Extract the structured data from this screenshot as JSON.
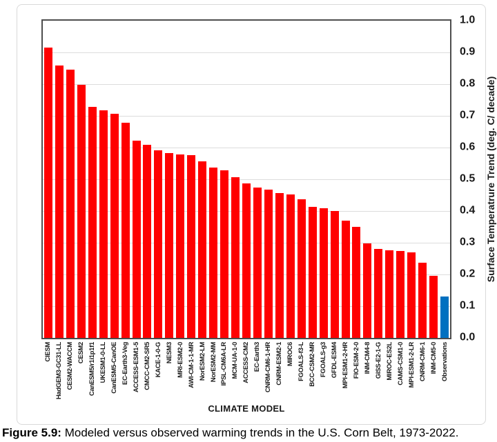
{
  "chart_data": {
    "type": "bar",
    "title": "",
    "xlabel": "CLIMATE MODEL",
    "ylabel": "Surface Temperatrure Trend (deg. C/ decade)",
    "ylim": [
      0.0,
      1.0
    ],
    "ytick_step": 0.1,
    "ytick_labels": [
      "1.0",
      "0.9",
      "0.8",
      "0.7",
      "0.6",
      "0.5",
      "0.4",
      "0.3",
      "0.2",
      "0.1",
      "0.0"
    ],
    "grid": "horizontal",
    "legend": "none",
    "categories": [
      "CIESM",
      "HadGEM3-GC31-LL",
      "CESM2-WACCM",
      "CESM2",
      "CanESM5/r1i1p1f1",
      "UKESM1-0-LL",
      "CanESM5-CanOE",
      "EC-Earth3-Veg",
      "ACCESS-ESM1-5",
      "CMCC-CM2-SR5",
      "KACE-1-0-G",
      "NESM3",
      "MRI-ESM2-0",
      "AWI-CM-1-1-MR",
      "NorESM2-LM",
      "NorESM2-MM",
      "IPSL-CM6A-LR",
      "MCM-UA-1-0",
      "ACCESS-CM2",
      "EC-Earth3",
      "CNRM-CM6-1-HR",
      "CNRM-ESM2-1",
      "MIROC6",
      "FGOALS-f3-L",
      "BCC-CSM2-MR",
      "FGOALS-g3",
      "GFDL-ESM4",
      "MPI-ESM1-2-HR",
      "FIO-ESM-2-0",
      "INM-CM4-8",
      "GISS-E2-1-G",
      "MIROC-ES2L",
      "CAMS-CSM1-0",
      "MPI-ESM1-2-LR",
      "CNRM-CM6-1",
      "INM-CM5-0",
      "Observations"
    ],
    "values": [
      0.915,
      0.858,
      0.845,
      0.798,
      0.729,
      0.718,
      0.706,
      0.679,
      0.622,
      0.609,
      0.592,
      0.583,
      0.579,
      0.576,
      0.556,
      0.537,
      0.528,
      0.507,
      0.487,
      0.475,
      0.467,
      0.456,
      0.453,
      0.437,
      0.414,
      0.408,
      0.399,
      0.369,
      0.35,
      0.297,
      0.281,
      0.277,
      0.274,
      0.27,
      0.236,
      0.196,
      0.131
    ],
    "colors": {
      "model_bar": "#ff0000",
      "observation_bar": "#0070c0",
      "gridline": "#dcdcdc",
      "plot_border": "#4d4d4d"
    },
    "highlight": {
      "category": "Observations",
      "color": "#0070c0"
    }
  },
  "caption": {
    "label": "Figure 5.9:",
    "text": "Modeled versus observed warming trends in the U.S. Corn Belt, 1973-2022."
  }
}
